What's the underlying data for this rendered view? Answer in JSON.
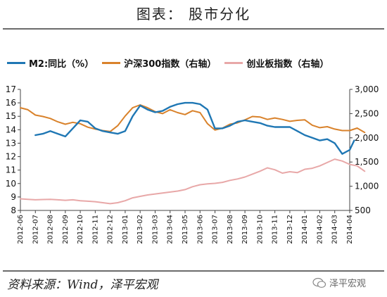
{
  "page": {
    "title": "图表：  股市分化",
    "source": "资料来源：Wind，泽平宏观",
    "watermark": "泽平宏观"
  },
  "chart_data": {
    "type": "line",
    "title": "",
    "xlabel": "",
    "ylabel_left": "",
    "ylabel_right": "",
    "left_axis": {
      "min": 8,
      "max": 17,
      "ticks": [
        8,
        9,
        10,
        11,
        12,
        13,
        14,
        15,
        16,
        17
      ]
    },
    "right_axis": {
      "min": 500,
      "max": 3000,
      "ticks": [
        "500",
        "1,000",
        "1,500",
        "2,000",
        "2,500",
        "3,000"
      ],
      "tick_values": [
        500,
        1000,
        1500,
        2000,
        2500,
        3000
      ]
    },
    "categories": [
      "2012-06",
      "2012-07",
      "2012-08",
      "2012-09",
      "2012-10",
      "2012-11",
      "2012-12",
      "2013-01",
      "2013-02",
      "2013-03",
      "2013-04",
      "2013-05",
      "2013-06",
      "2013-07",
      "2013-08",
      "2013-09",
      "2013-10",
      "2013-11",
      "2013-12",
      "2014-01",
      "2014-02",
      "2014-03",
      "2014-04"
    ],
    "grid": false,
    "legend_position": "top",
    "series": [
      {
        "name": "M2:同比（%）",
        "axis": "left",
        "color": "#1f77b4",
        "x": [
          1.0,
          1.5,
          2.0,
          2.5,
          3.0,
          3.5,
          4.0,
          4.5,
          5.0,
          5.5,
          6.0,
          6.5,
          7.0,
          7.5,
          8.0,
          8.5,
          9.0,
          9.5,
          10.0,
          10.5,
          11.0,
          11.5,
          12.0,
          12.5,
          13.0,
          13.5,
          14.0,
          14.5,
          15.0,
          15.5,
          16.0,
          16.5,
          17.0,
          17.5,
          18.0,
          18.5,
          19.0,
          19.5,
          20.0,
          20.5,
          21.0,
          21.5,
          22.0,
          22.3
        ],
        "values": [
          13.6,
          13.7,
          13.9,
          13.7,
          13.5,
          14.1,
          14.7,
          14.6,
          14.1,
          13.9,
          13.8,
          13.7,
          13.9,
          15.0,
          15.8,
          15.5,
          15.3,
          15.4,
          15.7,
          15.9,
          16.0,
          16.0,
          15.9,
          15.5,
          14.1,
          14.1,
          14.3,
          14.6,
          14.7,
          14.6,
          14.5,
          14.3,
          14.2,
          14.2,
          14.2,
          13.9,
          13.6,
          13.4,
          13.2,
          13.3,
          13.0,
          12.2,
          12.5,
          13.2
        ]
      },
      {
        "name": "沪深300指数（右轴）",
        "axis": "right",
        "color": "#d9822b",
        "x": [
          0.0,
          0.5,
          1.0,
          1.5,
          2.0,
          2.5,
          3.0,
          3.5,
          4.0,
          4.5,
          5.0,
          5.5,
          6.0,
          6.5,
          7.0,
          7.5,
          8.0,
          8.5,
          9.0,
          9.5,
          10.0,
          10.5,
          11.0,
          11.5,
          12.0,
          12.5,
          13.0,
          13.5,
          14.0,
          14.5,
          15.0,
          15.5,
          16.0,
          16.5,
          17.0,
          17.5,
          18.0,
          18.5,
          19.0,
          19.5,
          20.0,
          20.5,
          21.0,
          21.5,
          22.0,
          22.5,
          23.0
        ],
        "values": [
          2620,
          2580,
          2470,
          2440,
          2400,
          2330,
          2280,
          2320,
          2290,
          2220,
          2180,
          2150,
          2130,
          2250,
          2450,
          2620,
          2680,
          2620,
          2540,
          2500,
          2580,
          2520,
          2480,
          2560,
          2520,
          2290,
          2160,
          2200,
          2280,
          2310,
          2370,
          2440,
          2430,
          2380,
          2410,
          2380,
          2340,
          2360,
          2370,
          2260,
          2210,
          2230,
          2180,
          2150,
          2150,
          2200,
          2110
        ]
      },
      {
        "name": "创业板指数（右轴）",
        "axis": "right",
        "color": "#e8a8a8",
        "x": [
          0.0,
          0.5,
          1.0,
          1.5,
          2.0,
          2.5,
          3.0,
          3.5,
          4.0,
          4.5,
          5.0,
          5.5,
          6.0,
          6.5,
          7.0,
          7.5,
          8.0,
          8.5,
          9.0,
          9.5,
          10.0,
          10.5,
          11.0,
          11.5,
          12.0,
          12.5,
          13.0,
          13.5,
          14.0,
          14.5,
          15.0,
          15.5,
          16.0,
          16.5,
          17.0,
          17.5,
          18.0,
          18.5,
          19.0,
          19.5,
          20.0,
          20.5,
          21.0,
          21.5,
          22.0,
          22.5,
          23.0
        ],
        "values": [
          740,
          730,
          720,
          725,
          730,
          720,
          710,
          720,
          700,
          690,
          680,
          660,
          640,
          660,
          700,
          760,
          790,
          820,
          840,
          860,
          880,
          900,
          930,
          990,
          1030,
          1050,
          1060,
          1080,
          1120,
          1150,
          1190,
          1250,
          1310,
          1380,
          1340,
          1270,
          1300,
          1280,
          1350,
          1370,
          1420,
          1490,
          1560,
          1520,
          1450,
          1420,
          1310
        ]
      }
    ]
  }
}
